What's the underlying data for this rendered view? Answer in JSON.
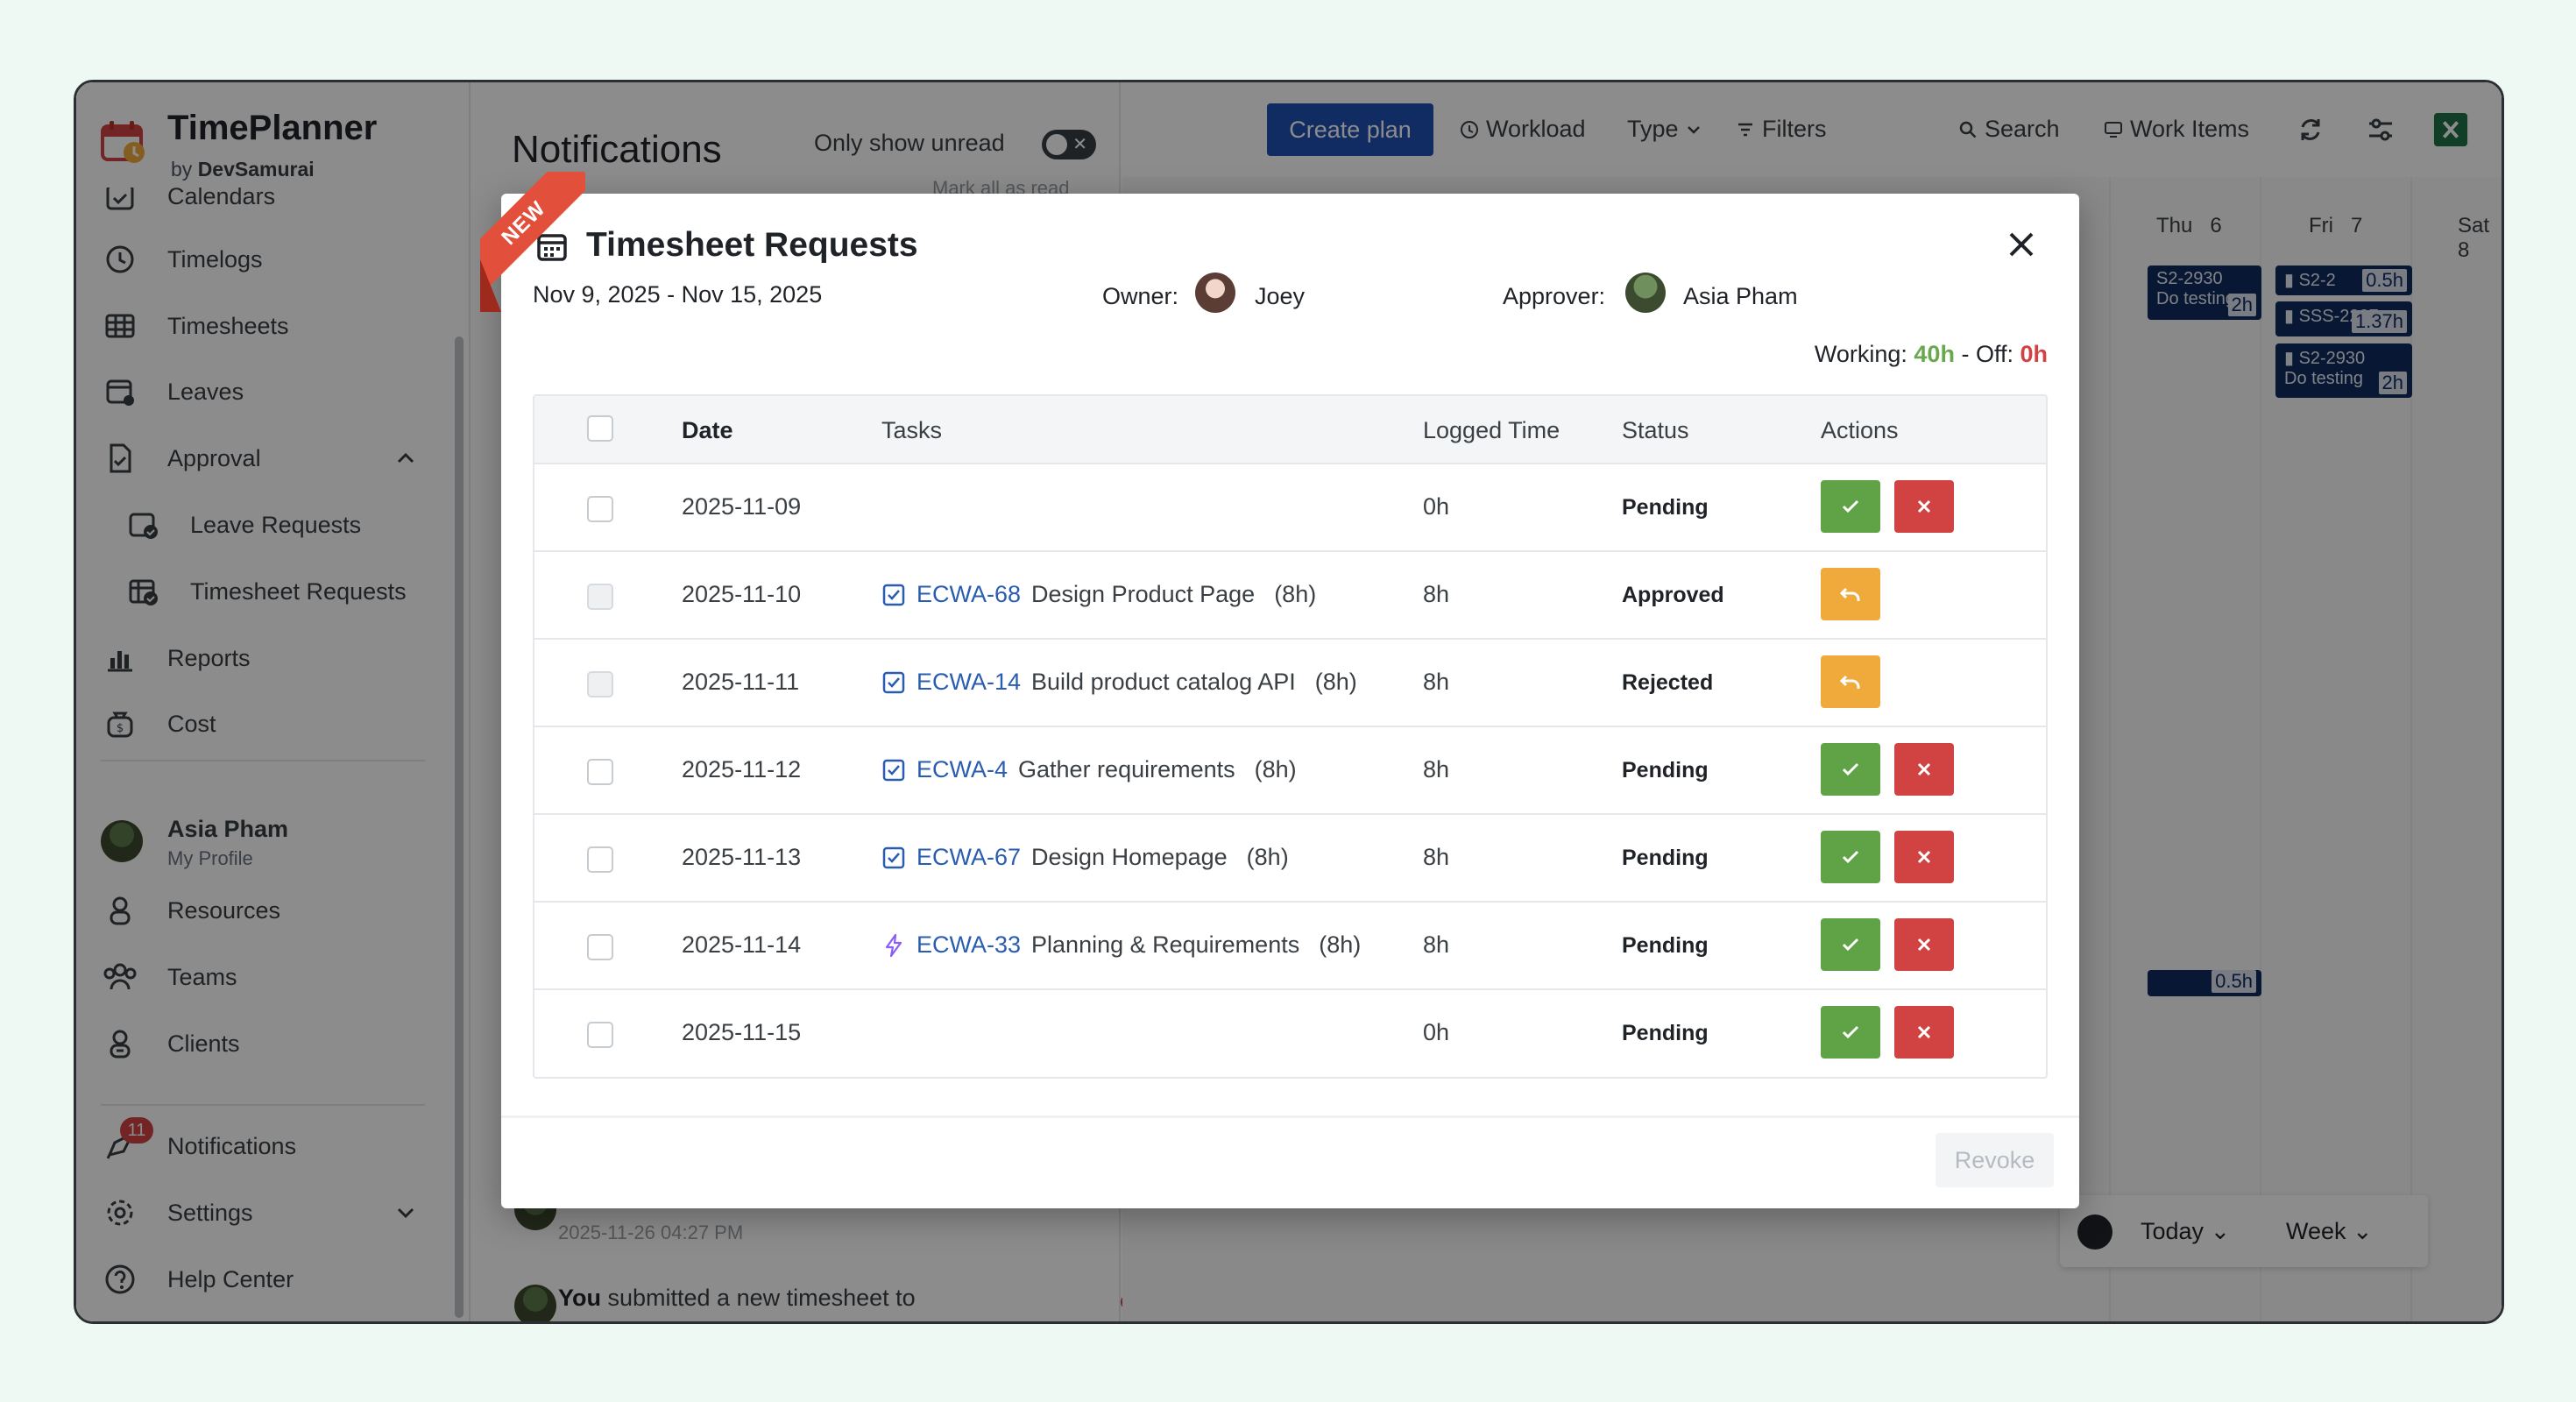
{
  "brand": {
    "title": "TimePlanner",
    "by": "by",
    "company": "DevSamurai"
  },
  "sidebar": {
    "items": [
      {
        "label": "Calendars",
        "icon": "calendar-check-icon"
      },
      {
        "label": "Timelogs",
        "icon": "clock-icon"
      },
      {
        "label": "Timesheets",
        "icon": "grid-table-icon"
      },
      {
        "label": "Leaves",
        "icon": "calendar-leave-icon"
      },
      {
        "label": "Approval",
        "icon": "document-check-icon"
      },
      {
        "label": "Leave Requests",
        "icon": "calendar-approve-icon"
      },
      {
        "label": "Timesheet Requests",
        "icon": "timesheet-approve-icon"
      },
      {
        "label": "Reports",
        "icon": "bar-chart-icon"
      },
      {
        "label": "Cost",
        "icon": "money-bag-icon"
      }
    ],
    "profile": {
      "name": "Asia Pham",
      "sub": "My Profile"
    },
    "items2": [
      {
        "label": "Resources",
        "icon": "person-icon"
      },
      {
        "label": "Teams",
        "icon": "team-icon"
      },
      {
        "label": "Clients",
        "icon": "client-icon"
      }
    ],
    "notifications": {
      "label": "Notifications",
      "badge": "11"
    },
    "settings": {
      "label": "Settings"
    },
    "help": {
      "label": "Help Center"
    }
  },
  "notifications_panel": {
    "title": "Notifications",
    "only_unread": "Only show unread",
    "mark_all": "Mark all as read",
    "item_time": "2025-11-26 04:27 PM",
    "item2_who": "You",
    "item2_text": " submitted a new timesheet to"
  },
  "toolbar": {
    "create_plan": "Create plan",
    "workload": "Workload",
    "type": "Type",
    "filters": "Filters",
    "search": "Search",
    "work_items": "Work Items"
  },
  "calendar": {
    "days": [
      "Thu",
      "6",
      "Fri",
      "7",
      "Sat",
      "8"
    ],
    "events": [
      {
        "text": "S2-2930",
        "sub": "Do testing",
        "hours": "2h"
      },
      {
        "text": "S2-2",
        "hours": "0.5h"
      },
      {
        "text": "SSS-2227",
        "hours": "1.37h"
      },
      {
        "text": "S2-2930",
        "sub": "Do testing",
        "hours": "2h"
      },
      {
        "text": "",
        "hours": "0.5h"
      }
    ],
    "today": "Today",
    "week": "Week"
  },
  "modal": {
    "ribbon": "NEW",
    "title": "Timesheet Requests",
    "range": "Nov 9, 2025 - Nov 15, 2025",
    "owner_label": "Owner:",
    "owner_name": "Joey",
    "approver_label": "Approver:",
    "approver_name": "Asia Pham",
    "working_label": "Working:",
    "working_value": "40h",
    "off_label": "- Off:",
    "off_value": "0h",
    "columns": [
      "Date",
      "Tasks",
      "Logged Time",
      "Status",
      "Actions"
    ],
    "rows": [
      {
        "date": "2025-11-09",
        "key": "",
        "task": "",
        "hrs": "",
        "logged": "0h",
        "status": "Pending",
        "task_icon": ""
      },
      {
        "date": "2025-11-10",
        "key": "ECWA-68",
        "task": "Design Product Page",
        "hrs": "(8h)",
        "logged": "8h",
        "status": "Approved",
        "task_icon": "checkbox-task-icon"
      },
      {
        "date": "2025-11-11",
        "key": "ECWA-14",
        "task": "Build product catalog API",
        "hrs": "(8h)",
        "logged": "8h",
        "status": "Rejected",
        "task_icon": "checkbox-task-icon"
      },
      {
        "date": "2025-11-12",
        "key": "ECWA-4",
        "task": "Gather requirements",
        "hrs": "(8h)",
        "logged": "8h",
        "status": "Pending",
        "task_icon": "checkbox-task-icon"
      },
      {
        "date": "2025-11-13",
        "key": "ECWA-67",
        "task": "Design Homepage",
        "hrs": "(8h)",
        "logged": "8h",
        "status": "Pending",
        "task_icon": "checkbox-task-icon"
      },
      {
        "date": "2025-11-14",
        "key": "ECWA-33",
        "task": "Planning & Requirements",
        "hrs": "(8h)",
        "logged": "8h",
        "status": "Pending",
        "task_icon": "lightning-epic-icon"
      },
      {
        "date": "2025-11-15",
        "key": "",
        "task": "",
        "hrs": "",
        "logged": "0h",
        "status": "Pending",
        "task_icon": ""
      }
    ],
    "revoke": "Revoke"
  },
  "colors": {
    "approve": "#5fa346",
    "reject": "#d14343",
    "undo": "#f0a93b",
    "primary": "#1f4fb5",
    "link": "#2a5db0"
  }
}
